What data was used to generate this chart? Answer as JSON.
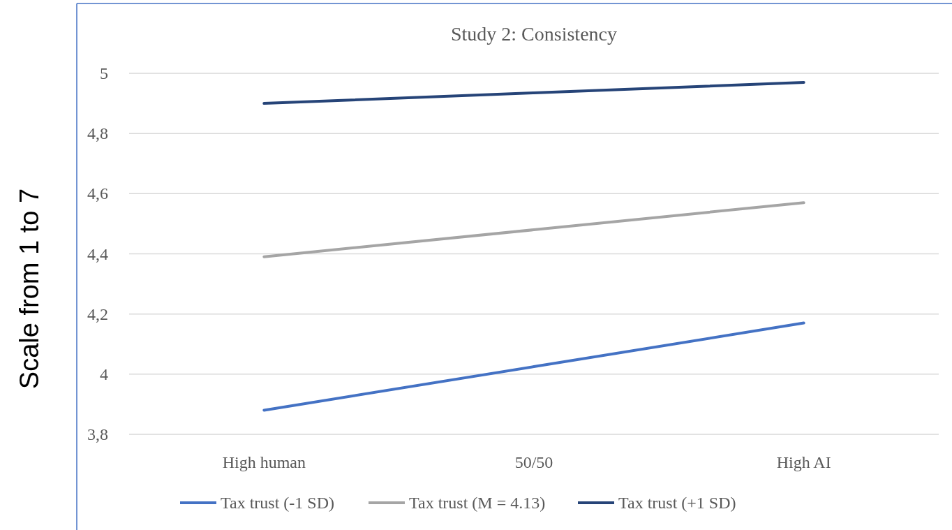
{
  "chart_data": {
    "type": "line",
    "title": "Study 2: Consistency",
    "ylabel": "Scale from 1 to 7",
    "categories": [
      "High human",
      "50/50",
      "High AI"
    ],
    "series": [
      {
        "name": "Tax trust (-1 SD)",
        "color": "#4472c4",
        "values": [
          3.88,
          4.025,
          4.17
        ]
      },
      {
        "name": "Tax trust (M = 4.13)",
        "color": "#a5a5a5",
        "values": [
          4.39,
          4.48,
          4.57
        ]
      },
      {
        "name": "Tax trust (+1 SD)",
        "color": "#264478",
        "values": [
          4.9,
          4.935,
          4.97
        ]
      }
    ],
    "ylim": [
      3.8,
      5
    ],
    "yticks": [
      {
        "value": 3.8,
        "label": "3,8"
      },
      4,
      {
        "value": 4.2,
        "label": "4,2"
      },
      {
        "value": 4.4,
        "label": "4,4"
      },
      {
        "value": 4.6,
        "label": "4,6"
      },
      {
        "value": 4.8,
        "label": "4,8"
      },
      5
    ],
    "grid": "y",
    "legend": "bottom",
    "marker": "none",
    "line_style": "solid"
  }
}
